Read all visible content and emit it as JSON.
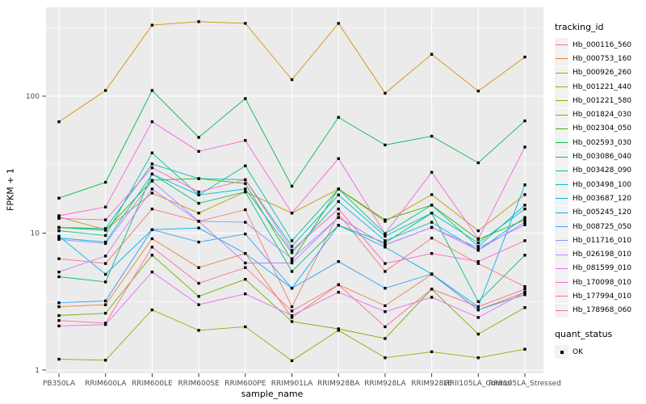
{
  "chart_data": {
    "type": "line",
    "title": "",
    "xlabel": "sample_name",
    "ylabel": "FPKM + 1",
    "y_scale": "log10",
    "ylim": [
      1,
      500
    ],
    "y_ticks": [
      {
        "label": "1",
        "value": 1
      },
      {
        "label": "10",
        "value": 10
      },
      {
        "label": "100",
        "value": 100
      }
    ],
    "y_minor_ticks": [
      3.162,
      31.62,
      316.2
    ],
    "grid": "on",
    "marker": {
      "shape": "square",
      "color": "#000000"
    },
    "categories": [
      "PB350LA",
      "RRIM600LA",
      "RRIM600LE",
      "RRIM600SE",
      "RRIM600PE",
      "RRIM901LA",
      "RRIM928BA",
      "RRIM928LA",
      "RRIM928LE",
      "RRII105LA_Control",
      "RRII105LA_Stressed"
    ],
    "legend": {
      "title": "tracking_id",
      "position": "right"
    },
    "legend2": {
      "title": "quant_status",
      "items": [
        {
          "label": "OK",
          "marker": "black-square"
        }
      ]
    },
    "series": [
      {
        "name": "Hb_000116_560",
        "color": "#F8766D",
        "values": [
          6.5,
          6.0,
          15,
          12.2,
          14.8,
          2.9,
          13.8,
          5.25,
          9.2,
          6.0,
          4.07
        ]
      },
      {
        "name": "Hb_000753_160",
        "color": "#EA8331",
        "values": [
          2.9,
          3.0,
          9.1,
          5.6,
          7.1,
          2.42,
          4.2,
          2.95,
          5.0,
          2.75,
          3.7
        ]
      },
      {
        "name": "Hb_000926_260",
        "color": "#D89000",
        "values": [
          65,
          110,
          330,
          350,
          340,
          132,
          340,
          105,
          202,
          109,
          193
        ]
      },
      {
        "name": "Hb_001221_440",
        "color": "#C09B00",
        "values": [
          13.1,
          10.6,
          19.6,
          14,
          20,
          14,
          21,
          12.2,
          19.1,
          10.4,
          19.1
        ]
      },
      {
        "name": "Hb_001221_580",
        "color": "#A3A500",
        "values": [
          1.2,
          1.18,
          2.75,
          1.95,
          2.07,
          1.17,
          1.95,
          1.23,
          1.36,
          1.23,
          1.42
        ]
      },
      {
        "name": "Hb_001824_030",
        "color": "#7CAE00",
        "values": [
          2.5,
          2.6,
          6.9,
          3.45,
          4.6,
          2.26,
          2.0,
          1.7,
          3.9,
          1.83,
          2.86
        ]
      },
      {
        "name": "Hb_002304_050",
        "color": "#39B600",
        "values": [
          11,
          10.5,
          24.3,
          25,
          23,
          6.3,
          21,
          12.5,
          16,
          9.0,
          12.5
        ]
      },
      {
        "name": "Hb_002593_030",
        "color": "#00BB4E",
        "values": [
          18,
          23.5,
          110,
          50,
          96,
          22,
          70,
          44,
          51,
          32.6,
          66
        ]
      },
      {
        "name": "Hb_003086_040",
        "color": "#00BF7D",
        "values": [
          4.8,
          4.4,
          27,
          16.5,
          20,
          5.25,
          11.4,
          8.5,
          14,
          3.16,
          6.9
        ]
      },
      {
        "name": "Hb_003428_090",
        "color": "#00C1A3",
        "values": [
          10.4,
          9.6,
          38.5,
          19,
          31,
          8.8,
          21,
          9.9,
          16,
          8.0,
          16
        ]
      },
      {
        "name": "Hb_003498_100",
        "color": "#00BFC4",
        "values": [
          11,
          10.8,
          32,
          25,
          24.5,
          8.0,
          19,
          9.5,
          14,
          8.5,
          15
        ]
      },
      {
        "name": "Hb_003687_120",
        "color": "#00BAE0",
        "values": [
          9.2,
          8.6,
          27,
          19,
          21,
          7.2,
          17,
          8.8,
          12,
          7.5,
          13
        ]
      },
      {
        "name": "Hb_005245_120",
        "color": "#00B0F6",
        "values": [
          9.5,
          5.0,
          10.6,
          10.9,
          7.1,
          3.96,
          11.4,
          7.9,
          5.03,
          2.9,
          22.5
        ]
      },
      {
        "name": "Hb_008725_050",
        "color": "#35A2FF",
        "values": [
          3.1,
          3.2,
          10.6,
          8.6,
          9.85,
          3.96,
          6.2,
          3.96,
          5.03,
          2.75,
          3.55
        ]
      },
      {
        "name": "Hb_011716_010",
        "color": "#9590FF",
        "values": [
          9.0,
          8.4,
          24,
          12.2,
          12,
          6.5,
          13,
          8.2,
          11,
          7.8,
          11.5
        ]
      },
      {
        "name": "Hb_026198_010",
        "color": "#C77CFF",
        "values": [
          5.2,
          6.8,
          21,
          12.2,
          6.05,
          6.05,
          13,
          8.2,
          11,
          7.5,
          12
        ]
      },
      {
        "name": "Hb_081599_010",
        "color": "#E76BF3",
        "values": [
          2.1,
          2.15,
          5.2,
          3.0,
          3.6,
          2.5,
          3.7,
          2.67,
          3.4,
          2.42,
          3.7
        ]
      },
      {
        "name": "Hb_170098_010",
        "color": "#FA62DB",
        "values": [
          13.4,
          15.5,
          65,
          39.5,
          47.5,
          14,
          35,
          9.9,
          27.8,
          9.1,
          42.5
        ]
      },
      {
        "name": "Hb_177994_010",
        "color": "#FF61CC",
        "values": [
          12.8,
          12.5,
          30,
          20,
          24.5,
          7.5,
          15,
          6.0,
          7.1,
          6.2,
          8.8
        ]
      },
      {
        "name": "Hb_178968_060",
        "color": "#FF6A98",
        "values": [
          2.3,
          2.2,
          7.9,
          4.3,
          5.6,
          2.7,
          4.2,
          2.07,
          3.9,
          2.9,
          3.9
        ]
      }
    ]
  },
  "panel": {
    "background": "#EBEBEB",
    "grid_color": "#FFFFFF",
    "tick_color": "#333333",
    "tick_label_color": "#4D4D4D"
  }
}
